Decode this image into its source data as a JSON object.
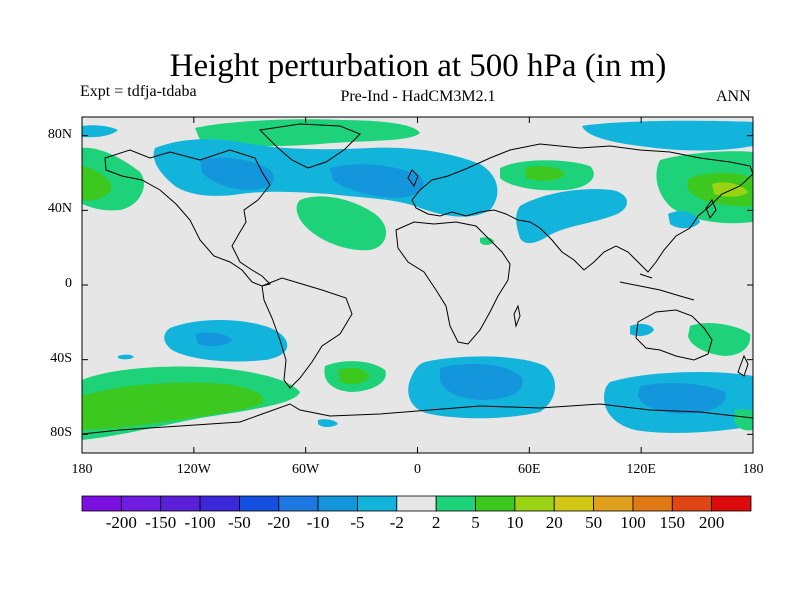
{
  "title": "Height perturbation at 500 hPa (in m)",
  "experiment": "Expt = tdfja-tdaba",
  "subtitle": "Pre-Ind - HadCM3M2.1",
  "season": "ANN",
  "axes": {
    "y_ticks": [
      {
        "value": 80,
        "label": "80N"
      },
      {
        "value": 40,
        "label": "40N"
      },
      {
        "value": 0,
        "label": "0"
      },
      {
        "value": -40,
        "label": "40S"
      },
      {
        "value": -80,
        "label": "80S"
      }
    ],
    "x_ticks": [
      {
        "value": -180,
        "label": "180"
      },
      {
        "value": -120,
        "label": "120W"
      },
      {
        "value": -60,
        "label": "60W"
      },
      {
        "value": 0,
        "label": "0"
      },
      {
        "value": 60,
        "label": "60E"
      },
      {
        "value": 120,
        "label": "120E"
      },
      {
        "value": 180,
        "label": "180"
      }
    ],
    "lon_range": [
      -180,
      180
    ],
    "lat_range": [
      -90,
      90
    ]
  },
  "colorbar": {
    "colors": [
      "#7a0fe0",
      "#6e1ce0",
      "#5a20d8",
      "#3c28d8",
      "#1450e0",
      "#1a78e0",
      "#1496dc",
      "#12b4dc",
      "#e6e6e6",
      "#1ed27a",
      "#3cc81e",
      "#9ad214",
      "#d2c814",
      "#e0a01e",
      "#e07814",
      "#e04614",
      "#dc0a0a"
    ],
    "labels": [
      "-200",
      "-150",
      "-100",
      "-50",
      "-20",
      "-10",
      "-5",
      "-2",
      "2",
      "5",
      "10",
      "20",
      "50",
      "100",
      "150",
      "200"
    ]
  },
  "palette": {
    "neutral": "#e6e6e6",
    "neg2": "#12b4dc",
    "neg5": "#1496dc",
    "pos2": "#1ed27a",
    "pos5": "#3cc81e",
    "pos10": "#9ad214"
  }
}
